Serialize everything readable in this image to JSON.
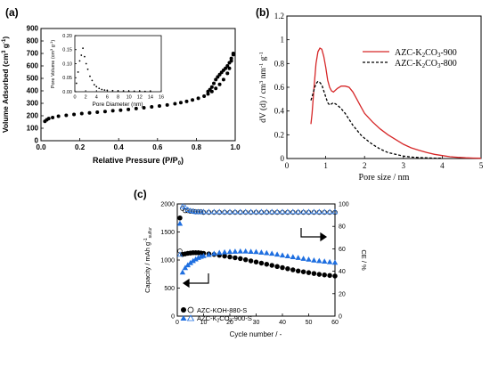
{
  "colors": {
    "red": "#d62728",
    "black": "#000000",
    "blue": "#1f6fe0",
    "light_blue": "#3b8ff0"
  },
  "chart_data": [
    {
      "panel_label": "(a)",
      "type": "scatter",
      "xlabel": "Relative Pressure (P/P",
      "xlabel_sub": "0",
      "xlabel_tail": ")",
      "ylabel": "Volume Adsorbed (cm",
      "ylabel_sup": "3",
      "ylabel_mid": " g",
      "ylabel_sup2": "-1",
      "ylabel_tail": ")",
      "xlim": [
        0.0,
        1.0
      ],
      "ylim": [
        0,
        900
      ],
      "xticks": [
        "0.0",
        "0.2",
        "0.4",
        "0.6",
        "0.8",
        "1.0"
      ],
      "yticks": [
        "0",
        "100",
        "200",
        "300",
        "400",
        "500",
        "600",
        "700",
        "800",
        "900"
      ],
      "series": [
        {
          "x": [
            0.02,
            0.03,
            0.04,
            0.06,
            0.09,
            0.13,
            0.17,
            0.21,
            0.25,
            0.29,
            0.33,
            0.37,
            0.41,
            0.45,
            0.49,
            0.53,
            0.57,
            0.61,
            0.65,
            0.69,
            0.72,
            0.75,
            0.78,
            0.81,
            0.84,
            0.86,
            0.88,
            0.9,
            0.92,
            0.94,
            0.96,
            0.97,
            0.98,
            0.99
          ],
          "y": [
            155,
            168,
            178,
            186,
            196,
            204,
            211,
            218,
            223,
            229,
            234,
            240,
            245,
            251,
            258,
            264,
            271,
            279,
            287,
            296,
            305,
            315,
            327,
            340,
            357,
            375,
            395,
            420,
            452,
            490,
            540,
            580,
            640,
            690
          ]
        },
        {
          "x": [
            0.99,
            0.98,
            0.97,
            0.96,
            0.95,
            0.94,
            0.93,
            0.92,
            0.91,
            0.9,
            0.89,
            0.88,
            0.87,
            0.86
          ],
          "y": [
            700,
            660,
            625,
            600,
            580,
            565,
            548,
            530,
            512,
            490,
            460,
            430,
            410,
            395
          ]
        }
      ],
      "inset": {
        "type": "line",
        "xlabel": "Pore Diameter (nm)",
        "ylabel": "Pore Volume (cm",
        "ylabel_sup": "3",
        "ylabel_mid": " g",
        "ylabel_sup2": "-1",
        "ylabel_tail": ")",
        "xlim": [
          0,
          16
        ],
        "ylim": [
          0.0,
          0.2
        ],
        "xticks": [
          "0",
          "2",
          "4",
          "6",
          "8",
          "10",
          "12",
          "14",
          "16"
        ],
        "yticks": [
          "0.00",
          "0.05",
          "0.10",
          "0.15",
          "0.20"
        ],
        "x": [
          0.3,
          0.6,
          0.9,
          1.2,
          1.5,
          1.8,
          2.1,
          2.4,
          2.8,
          3.2,
          3.6,
          4.0,
          4.5,
          5.0,
          5.5,
          6,
          7,
          8,
          9,
          10,
          11,
          12,
          13,
          14
        ],
        "y": [
          0.03,
          0.07,
          0.11,
          0.13,
          0.155,
          0.125,
          0.1,
          0.08,
          0.055,
          0.04,
          0.025,
          0.018,
          0.012,
          0.008,
          0.006,
          0.005,
          0.004,
          0.003,
          0.003,
          0.002,
          0.002,
          0.002,
          0.001,
          0.001
        ]
      }
    },
    {
      "panel_label": "(b)",
      "type": "line",
      "xlabel": "Pore size / nm",
      "ylabel": "dV (d) / cm",
      "ylabel_sup": "3",
      "ylabel_mid": " nm",
      "ylabel_sup2": "-1",
      "ylabel_mid2": " g",
      "ylabel_sup3": "-1",
      "xlim": [
        0,
        5
      ],
      "ylim": [
        0,
        1.2
      ],
      "xticks": [
        "0",
        "1",
        "2",
        "3",
        "4",
        "5"
      ],
      "yticks": [
        "0",
        "0.2",
        "0.4",
        "0.6",
        "0.8",
        "1",
        "1.2"
      ],
      "series": [
        {
          "name": "AZC-K",
          "name_sub": "2",
          "name_mid": "CO",
          "name_sub2": "3",
          "name_tail": "-900",
          "style": "solid",
          "color": "#d62728",
          "x": [
            0.62,
            0.65,
            0.7,
            0.75,
            0.8,
            0.85,
            0.9,
            0.95,
            1.0,
            1.05,
            1.1,
            1.15,
            1.2,
            1.3,
            1.4,
            1.5,
            1.6,
            1.7,
            1.8,
            1.9,
            2.0,
            2.2,
            2.4,
            2.6,
            2.8,
            3.0,
            3.2,
            3.4,
            3.6,
            3.8,
            4.0,
            4.2,
            4.4,
            4.6,
            4.8,
            5.0
          ],
          "y": [
            0.29,
            0.38,
            0.6,
            0.8,
            0.9,
            0.93,
            0.92,
            0.86,
            0.77,
            0.66,
            0.6,
            0.57,
            0.56,
            0.59,
            0.61,
            0.61,
            0.6,
            0.56,
            0.5,
            0.44,
            0.38,
            0.31,
            0.25,
            0.2,
            0.16,
            0.12,
            0.09,
            0.07,
            0.05,
            0.035,
            0.025,
            0.015,
            0.01,
            0.006,
            0.004,
            0.002
          ]
        },
        {
          "name": "AZC-K",
          "name_sub": "2",
          "name_mid": "CO",
          "name_sub2": "3",
          "name_tail": "-800",
          "style": "dashed",
          "color": "#000000",
          "x": [
            0.62,
            0.65,
            0.7,
            0.75,
            0.8,
            0.85,
            0.9,
            0.95,
            1.0,
            1.05,
            1.1,
            1.15,
            1.2,
            1.3,
            1.4,
            1.5,
            1.6,
            1.7,
            1.8,
            1.9,
            2.0,
            2.2,
            2.4,
            2.6,
            2.8,
            3.0,
            3.2,
            3.4,
            3.6,
            3.8,
            4.0
          ],
          "y": [
            0.49,
            0.52,
            0.58,
            0.63,
            0.65,
            0.64,
            0.62,
            0.57,
            0.52,
            0.47,
            0.45,
            0.46,
            0.47,
            0.45,
            0.42,
            0.38,
            0.33,
            0.28,
            0.24,
            0.2,
            0.17,
            0.12,
            0.08,
            0.05,
            0.035,
            0.02,
            0.012,
            0.008,
            0.005,
            0.003,
            0.002
          ]
        }
      ]
    },
    {
      "panel_label": "(c)",
      "type": "scatter",
      "xlabel": "Cycle number / -",
      "ylabel": "Capacity / mAh g",
      "ylabel_sup": "-1",
      "ylabel_sub": "sulfur",
      "y2label": "CE / %",
      "xlim": [
        0,
        60
      ],
      "ylim": [
        0,
        2000
      ],
      "y2lim": [
        0,
        100
      ],
      "xticks": [
        "0",
        "10",
        "20",
        "30",
        "40",
        "50",
        "60"
      ],
      "yticks": [
        "0",
        "500",
        "1000",
        "1500",
        "2000"
      ],
      "y2ticks": [
        "0",
        "20",
        "40",
        "60",
        "80",
        "100"
      ],
      "legend": [
        {
          "text": "AZC-KOH-880-S",
          "marker": "circle",
          "color": "#000000"
        },
        {
          "text_a": "AZC-K",
          "text_sub": "2",
          "text_mid": "CO",
          "text_sub2": "3",
          "text_tail": "-900-S",
          "marker": "triangle",
          "color": "#1f6fe0"
        }
      ],
      "series": [
        {
          "name": "AZC-KOH-880-S capacity",
          "marker": "circle-filled",
          "axis": "left",
          "x": [
            1,
            2,
            3,
            4,
            5,
            6,
            7,
            8,
            9,
            10,
            12,
            14,
            16,
            18,
            20,
            22,
            24,
            26,
            28,
            30,
            32,
            34,
            36,
            38,
            40,
            42,
            44,
            46,
            48,
            50,
            52,
            54,
            56,
            58,
            60
          ],
          "y": [
            1750,
            1100,
            1110,
            1120,
            1125,
            1130,
            1130,
            1130,
            1125,
            1120,
            1110,
            1100,
            1085,
            1070,
            1055,
            1040,
            1025,
            1005,
            985,
            965,
            945,
            925,
            905,
            885,
            865,
            845,
            825,
            805,
            790,
            775,
            760,
            745,
            735,
            725,
            715
          ]
        },
        {
          "name": "AZC-KOH-880-S CE",
          "marker": "circle-open",
          "axis": "right",
          "x": [
            1,
            2,
            3,
            4,
            5,
            6,
            7,
            8,
            9,
            10,
            12,
            14,
            16,
            18,
            20,
            22,
            24,
            26,
            28,
            30,
            32,
            34,
            36,
            38,
            40,
            42,
            44,
            46,
            48,
            50,
            52,
            54,
            56,
            58,
            60
          ],
          "y": [
            58,
            96,
            94,
            94,
            93.5,
            93.5,
            93,
            93,
            93,
            92.5,
            92.5,
            92.5,
            92.5,
            92.5,
            92.5,
            92.5,
            92.5,
            92.5,
            92.5,
            92.5,
            92.5,
            92.5,
            92.5,
            92.5,
            92.5,
            92.5,
            92.5,
            92.5,
            92.5,
            92.5,
            92.5,
            92.5,
            92.5,
            92.5,
            92.5
          ]
        },
        {
          "name": "AZC-K2CO3-900-S capacity",
          "marker": "triangle-filled",
          "axis": "left",
          "x": [
            1,
            2,
            3,
            4,
            5,
            6,
            7,
            8,
            9,
            10,
            12,
            14,
            16,
            18,
            20,
            22,
            24,
            26,
            28,
            30,
            32,
            34,
            36,
            38,
            40,
            42,
            44,
            46,
            48,
            50,
            52,
            54,
            56,
            58,
            60
          ],
          "y": [
            1650,
            780,
            860,
            910,
            950,
            985,
            1015,
            1040,
            1060,
            1075,
            1095,
            1115,
            1130,
            1140,
            1148,
            1152,
            1155,
            1155,
            1150,
            1145,
            1135,
            1125,
            1115,
            1100,
            1085,
            1070,
            1055,
            1040,
            1025,
            1010,
            995,
            985,
            975,
            965,
            955
          ]
        },
        {
          "name": "AZC-K2CO3-900-S CE",
          "marker": "triangle-open",
          "axis": "right",
          "x": [
            1,
            2,
            3,
            4,
            5,
            6,
            7,
            8,
            9,
            10,
            12,
            14,
            16,
            18,
            20,
            22,
            24,
            26,
            28,
            30,
            32,
            34,
            36,
            38,
            40,
            42,
            44,
            46,
            48,
            50,
            52,
            54,
            56,
            58,
            60
          ],
          "y": [
            55,
            98,
            97,
            95,
            94,
            93.5,
            93,
            93,
            93,
            93,
            93,
            93,
            93,
            93,
            93,
            93,
            93,
            93,
            93,
            93,
            93,
            93,
            93,
            93,
            93,
            93,
            93,
            93,
            93,
            93,
            93,
            93,
            93,
            93,
            93
          ]
        }
      ]
    }
  ]
}
